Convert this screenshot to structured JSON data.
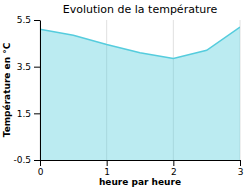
{
  "chart_data": {
    "type": "area",
    "title": "Evolution de la température",
    "xlabel": "heure par heure",
    "ylabel": "Température en °C",
    "x": [
      0,
      0.5,
      1,
      1.5,
      2,
      2.5,
      3
    ],
    "values": [
      5.1,
      4.85,
      4.45,
      4.1,
      3.85,
      4.2,
      5.2
    ],
    "xlim": [
      0,
      3
    ],
    "ylim": [
      -0.5,
      5.5
    ],
    "xticks": [
      0,
      1,
      2,
      3
    ],
    "yticks": [
      -0.5,
      1.5,
      3.5,
      5.5
    ],
    "color": "#55ccdd",
    "grid": "x"
  }
}
